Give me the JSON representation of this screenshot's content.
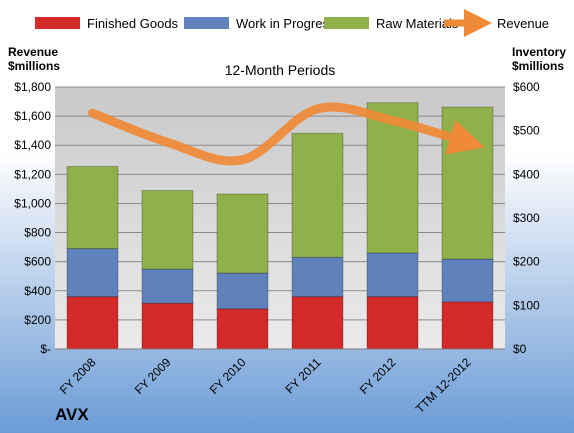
{
  "chart_data": {
    "type": "bar",
    "stacked": true,
    "subtitle": "12-Month Periods",
    "company": "AVX",
    "categories": [
      "FY 2008",
      "FY 2009",
      "FY 2010",
      "FY 2011",
      "FY 2012",
      "TTM 12-2012"
    ],
    "legend": [
      "Finished Goods",
      "Work in Progress",
      "Raw Materials",
      "Revenue"
    ],
    "left_axis": {
      "title_line1": "Revenue",
      "title_line2": "$millions",
      "range": [
        0,
        1800
      ],
      "ticks": [
        "$-",
        "$200",
        "$400",
        "$600",
        "$800",
        "$1,000",
        "$1,200",
        "$1,400",
        "$1,600",
        "$1,800"
      ]
    },
    "right_axis": {
      "title_line1": "Inventory",
      "title_line2": "$millions",
      "range": [
        0,
        600
      ],
      "ticks": [
        "$0",
        "$100",
        "$200",
        "$300",
        "$400",
        "$500",
        "$600"
      ]
    },
    "series": [
      {
        "name": "Finished Goods",
        "axis": "right",
        "color": "#d42a2a",
        "values": [
          120,
          105,
          92,
          120,
          120,
          108
        ]
      },
      {
        "name": "Work in Progress",
        "axis": "right",
        "color": "#5f82bd",
        "values": [
          110,
          78,
          82,
          90,
          100,
          98
        ]
      },
      {
        "name": "Raw Materials",
        "axis": "right",
        "color": "#8fb04a",
        "values": [
          188,
          180,
          181,
          284,
          344,
          348
        ]
      },
      {
        "name": "Revenue",
        "axis": "left",
        "color": "#ef8a36",
        "values": [
          1620,
          1420,
          1300,
          1650,
          1570,
          1420
        ]
      }
    ],
    "grid": true,
    "legend_position": "top"
  },
  "colors": {
    "background_top": "#ffffff",
    "background_bottom": "#6b9bd6",
    "plot_background": "#d9d9d9",
    "gridline": "#8c8c8c"
  }
}
